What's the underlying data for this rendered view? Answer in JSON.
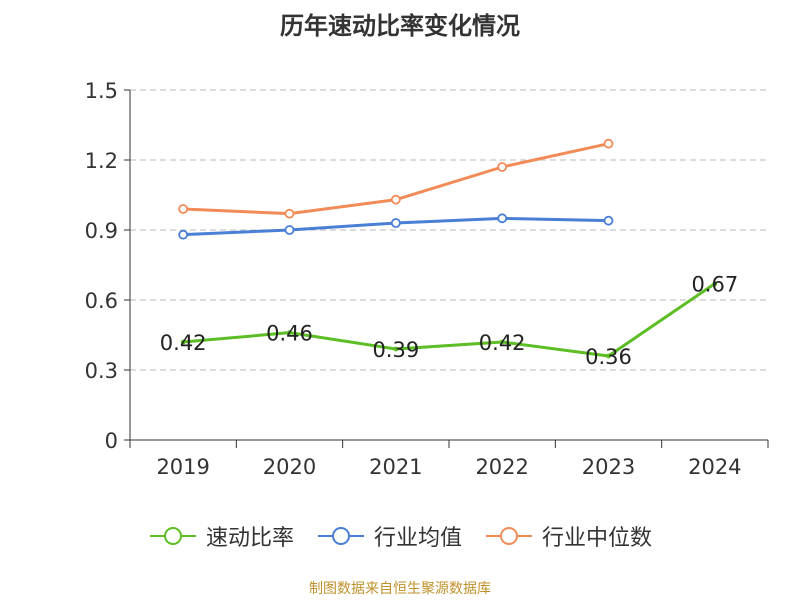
{
  "chart_data": {
    "type": "line",
    "title": "历年速动比率变化情况",
    "categories": [
      "2019",
      "2020",
      "2021",
      "2022",
      "2023",
      "2024"
    ],
    "ylim": [
      0,
      1.5
    ],
    "yticks": [
      "0",
      "0.3",
      "0.6",
      "0.9",
      "1.2",
      "1.5"
    ],
    "ytick_values": [
      0,
      0.3,
      0.6,
      0.9,
      1.2,
      1.5
    ],
    "grid": true,
    "legend_position": "bottom",
    "series": [
      {
        "name": "速动比率",
        "color": "#5cbd24",
        "values": [
          0.42,
          0.46,
          0.39,
          0.42,
          0.36,
          0.67
        ],
        "labels": [
          "0.42",
          "0.46",
          "0.39",
          "0.42",
          "0.36",
          "0.67"
        ]
      },
      {
        "name": "行业均值",
        "color": "#4a7fd6",
        "values": [
          0.88,
          0.9,
          0.93,
          0.95,
          0.94,
          null
        ]
      },
      {
        "name": "行业中位数",
        "color": "#f28b58",
        "values": [
          0.99,
          0.97,
          1.03,
          1.17,
          1.27,
          null
        ]
      }
    ]
  },
  "source": "制图数据来自恒生聚源数据库"
}
